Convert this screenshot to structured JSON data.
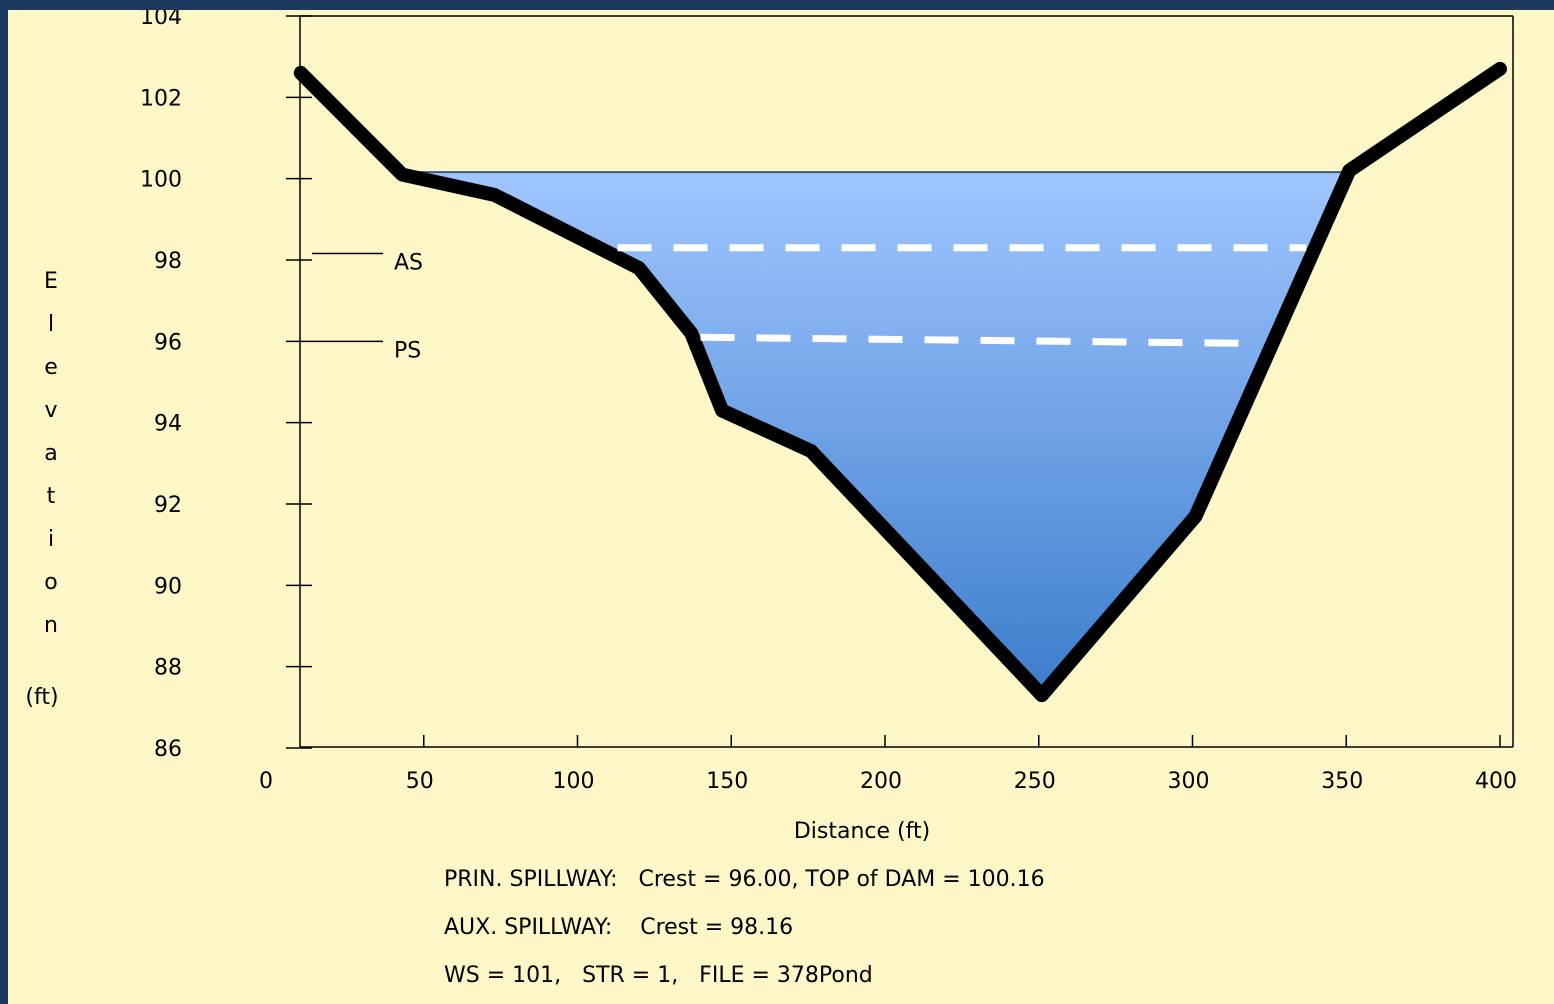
{
  "chart_data": {
    "type": "area",
    "xlabel": "Distance (ft)",
    "ylabel": "Elevation",
    "ylabel_unit": "(ft)",
    "xlim": [
      0,
      400
    ],
    "ylim": [
      86,
      104
    ],
    "x_ticks": [
      0,
      50,
      100,
      150,
      200,
      250,
      300,
      350,
      400
    ],
    "y_ticks": [
      86,
      88,
      90,
      92,
      94,
      96,
      98,
      100,
      102,
      104
    ],
    "grid": false,
    "ground_profile": {
      "x": [
        10,
        43,
        73,
        120,
        137,
        147,
        176,
        251,
        301,
        351,
        400
      ],
      "y": [
        102.6,
        100.1,
        99.6,
        97.8,
        96.2,
        94.3,
        93.3,
        87.3,
        91.7,
        100.2,
        102.7
      ]
    },
    "water_surface": {
      "elevation": 100.16,
      "x_start": 43,
      "x_end": 351
    },
    "dashed_levels": [
      {
        "elevation": 98.3,
        "x_start": 113,
        "x_end": 337
      },
      {
        "elevation": 96.1,
        "x_start": 140,
        "x_end": 317
      }
    ],
    "markers": [
      {
        "label": "AS",
        "elevation": 98.16
      },
      {
        "label": "PS",
        "elevation": 96.0
      }
    ],
    "notes": [
      "PRIN. SPILLWAY:   Crest = 96.00, TOP of DAM = 100.16",
      "AUX. SPILLWAY:    Crest = 98.16",
      "WS = 101,   STR = 1,   FILE = 378Pond"
    ]
  },
  "colors": {
    "background": "#fdf6c6",
    "frame": "#1b3a5e",
    "water_top": "#a0c6ff",
    "water_bottom": "#3d7dcc",
    "ground_line": "#000000",
    "dashes": "#ffffff"
  }
}
